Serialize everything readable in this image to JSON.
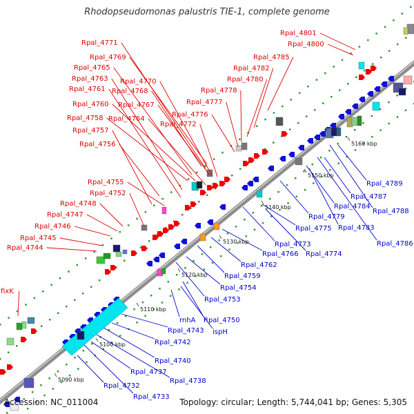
{
  "header": {
    "title": "Rhodopseudomonas palustris TIE-1, complete genome"
  },
  "footer": {
    "accession": "Accession: NC_011004",
    "summary": "Topology: circular; Length: 5,744,041 bp; Genes: 5,305"
  },
  "colors": {
    "forward_label": "#dd0000",
    "reverse_label": "#0000cc",
    "backbone": "#8c8c8c",
    "forward_gene": "#ee0000",
    "reverse_gene": "#1010dd",
    "rrna": "#00e5ee",
    "misc": "#2aa02a"
  },
  "scale_ticks": [
    "5090 kbp",
    "5100 kbp",
    "5110 kbp",
    "5120 kbp",
    "5130 kbp",
    "5140 kbp",
    "5150 kbp",
    "5160 kbp"
  ],
  "forward_labels": [
    "fixK",
    "Rpal_4744",
    "Rpal_4745",
    "Rpal_4746",
    "Rpal_4747",
    "Rpal_4748",
    "Rpal_4752",
    "Rpal_4755",
    "Rpal_4756",
    "Rpal_4757",
    "Rpal_4758",
    "Rpal_4760",
    "Rpal_4761",
    "Rpal_4763",
    "Rpal_4765",
    "Rpal_4769",
    "Rpal_4771",
    "Rpal_4770",
    "Rpal_4768",
    "Rpal_4767",
    "Rpal_4764",
    "Rpal_4772",
    "Rpal_4776",
    "Rpal_4777",
    "Rpal_4778",
    "Rpal_4780",
    "Rpal_4782",
    "Rpal_4785",
    "Rpal_4800",
    "Rpal_4801"
  ],
  "reverse_labels": [
    "Rpal_4732",
    "Rpal_4733",
    "Rpal_4737",
    "Rpal_4738",
    "Rpal_4740",
    "Rpal_4742",
    "Rpal_4743",
    "rnhA",
    "ispH",
    "Rpal_4750",
    "Rpal_4753",
    "Rpal_4754",
    "Rpal_4759",
    "Rpal_4762",
    "Rpal_4766",
    "Rpal_4773",
    "Rpal_4774",
    "Rpal_4775",
    "Rpal_4779",
    "Rpal_4783",
    "Rpal_4784",
    "Rpal_4786",
    "Rpal_4788",
    "Rpal_4787",
    "Rpal_4789"
  ]
}
